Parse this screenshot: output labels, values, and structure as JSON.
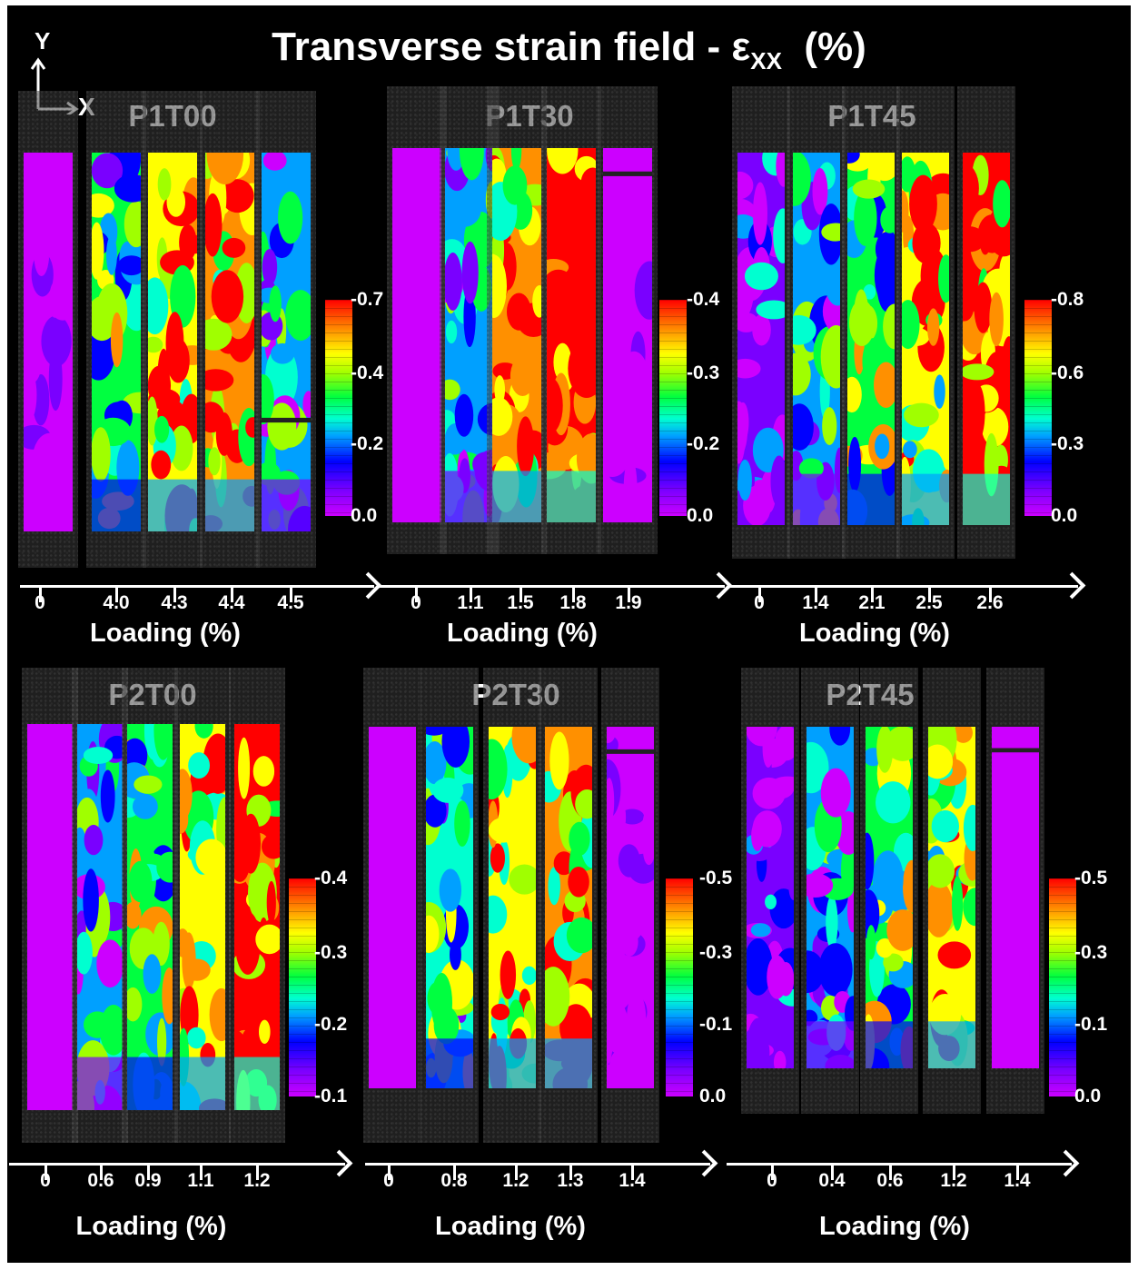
{
  "figure": {
    "title": "Transverse strain field - ε",
    "title_subscript": "XX",
    "title_unit": "(%)",
    "axis_y": "Y",
    "axis_x": "X",
    "xlabel": "Loading (%)"
  },
  "panels": [
    {
      "name": "P1T00",
      "loadings": [
        "0",
        "4.0",
        "4.3",
        "4.4",
        "4.5"
      ],
      "colorbar": [
        "-0.7",
        "-0.4",
        "-0.2",
        "0.0"
      ],
      "mean_level": [
        0.05,
        0.5,
        0.75,
        0.8,
        0.3
      ],
      "cracked": [
        false,
        false,
        false,
        false,
        true
      ]
    },
    {
      "name": "P1T30",
      "loadings": [
        "0",
        "1.1",
        "1.5",
        "1.8",
        "1.9"
      ],
      "colorbar": [
        "-0.4",
        "-0.3",
        "-0.2",
        "0.0"
      ],
      "mean_level": [
        0.0,
        0.35,
        0.8,
        0.95,
        0.05
      ],
      "cracked": [
        false,
        false,
        false,
        false,
        true
      ]
    },
    {
      "name": "P1T45",
      "loadings": [
        "0",
        "1.4",
        "2.1",
        "2.5",
        "2.6"
      ],
      "colorbar": [
        "-0.8",
        "-0.6",
        "-0.3",
        "0.0"
      ],
      "mean_level": [
        0.12,
        0.35,
        0.55,
        0.7,
        0.92
      ],
      "cracked": [
        false,
        false,
        false,
        false,
        false
      ]
    },
    {
      "name": "P2T00",
      "loadings": [
        "0",
        "0.6",
        "0.9",
        "1.1",
        "1.2"
      ],
      "colorbar": [
        "-0.4",
        "-0.3",
        "-0.2",
        "-0.1"
      ],
      "mean_level": [
        0.0,
        0.35,
        0.55,
        0.75,
        0.92
      ],
      "cracked": [
        false,
        false,
        false,
        false,
        false
      ]
    },
    {
      "name": "P2T30",
      "loadings": [
        "0",
        "0.8",
        "1.2",
        "1.3",
        "1.4"
      ],
      "colorbar": [
        "-0.5",
        "-0.3",
        "-0.1",
        "0.0"
      ],
      "mean_level": [
        0.02,
        0.45,
        0.75,
        0.8,
        0.05
      ],
      "cracked": [
        false,
        false,
        false,
        false,
        true
      ]
    },
    {
      "name": "P2T45",
      "loadings": [
        "0",
        "0.4",
        "0.6",
        "1.2",
        "1.4"
      ],
      "colorbar": [
        "-0.5",
        "-0.3",
        "-0.1",
        "0.0"
      ],
      "mean_level": [
        0.15,
        0.35,
        0.55,
        0.7,
        0.02
      ],
      "cracked": [
        false,
        false,
        false,
        false,
        true
      ]
    }
  ]
}
